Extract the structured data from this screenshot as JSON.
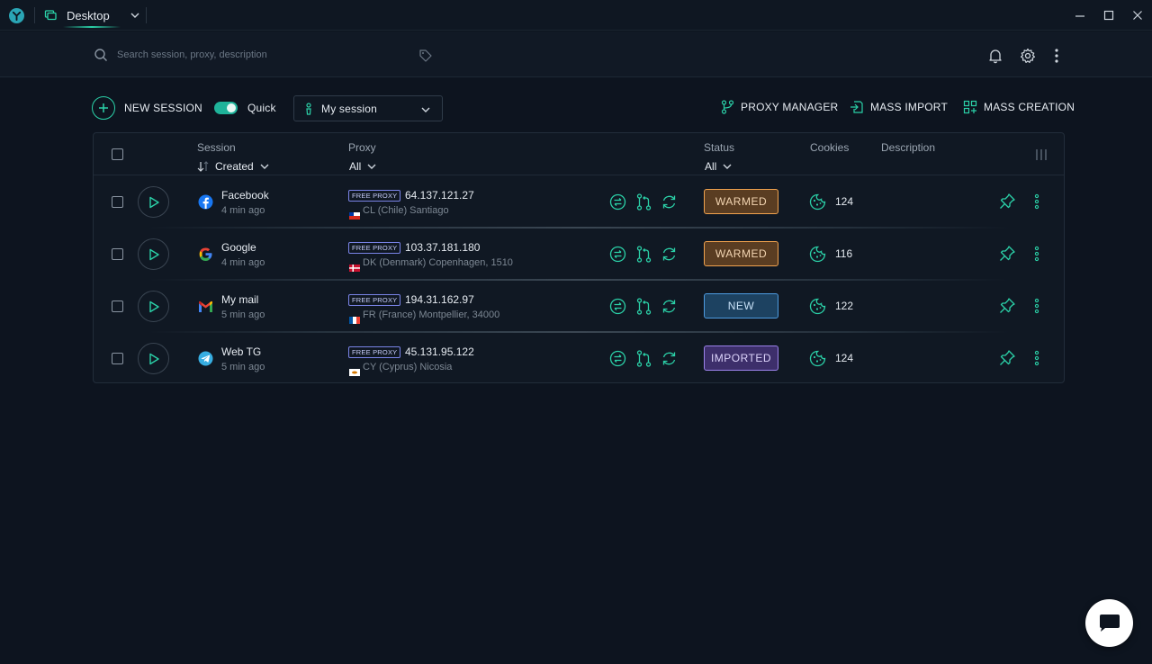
{
  "titlebar": {
    "workspace_label": "Desktop",
    "icons": [
      "app-logo-icon",
      "monitor-icon",
      "chevron-down-icon",
      "minimize-icon",
      "maximize-icon",
      "close-icon"
    ]
  },
  "header": {
    "search_placeholder": "Search session, proxy, description",
    "icons": [
      "search-icon",
      "tag-icon",
      "bell-icon",
      "gear-icon",
      "kebab-menu-icon"
    ]
  },
  "toolbar": {
    "new_session_label": "NEW SESSION",
    "quick_label": "Quick",
    "quick_enabled": true,
    "session_select_value": "My session",
    "proxy_manager_label": "PROXY MANAGER",
    "mass_import_label": "MASS IMPORT",
    "mass_creation_label": "MASS CREATION"
  },
  "table": {
    "columns": {
      "session": "Session",
      "session_sort": "Created",
      "proxy": "Proxy",
      "proxy_filter": "All",
      "status": "Status",
      "status_filter": "All",
      "cookies": "Cookies",
      "description": "Description"
    },
    "rows": [
      {
        "name": "Facebook",
        "icon": "facebook-icon",
        "time": "4 min ago",
        "proxy_badge": "FREE PROXY",
        "ip": "64.137.121.27",
        "location": "CL (Chile) Santiago",
        "status": "WARMED",
        "status_kind": "warmed",
        "cookies": "124"
      },
      {
        "name": "Google",
        "icon": "google-icon",
        "time": "4 min ago",
        "proxy_badge": "FREE PROXY",
        "ip": "103.37.181.180",
        "location": "DK (Denmark) Copenhagen, 1510",
        "status": "WARMED",
        "status_kind": "warmed",
        "cookies": "116"
      },
      {
        "name": "My mail",
        "icon": "gmail-icon",
        "time": "5 min ago",
        "proxy_badge": "FREE PROXY",
        "ip": "194.31.162.97",
        "location": "FR (France) Montpellier, 34000",
        "status": "NEW",
        "status_kind": "new",
        "cookies": "122"
      },
      {
        "name": "Web TG",
        "icon": "telegram-icon",
        "time": "5 min ago",
        "proxy_badge": "FREE PROXY",
        "ip": "45.131.95.122",
        "location": "CY (Cyprus) Nicosia",
        "status": "IMPORTED",
        "status_kind": "imported",
        "cookies": "124"
      }
    ]
  },
  "colors": {
    "accent": "#2bd1a8",
    "background": "#0d141f",
    "warmed": "#f0a24e",
    "new": "#4d9be0",
    "imported": "#9b82ea"
  }
}
